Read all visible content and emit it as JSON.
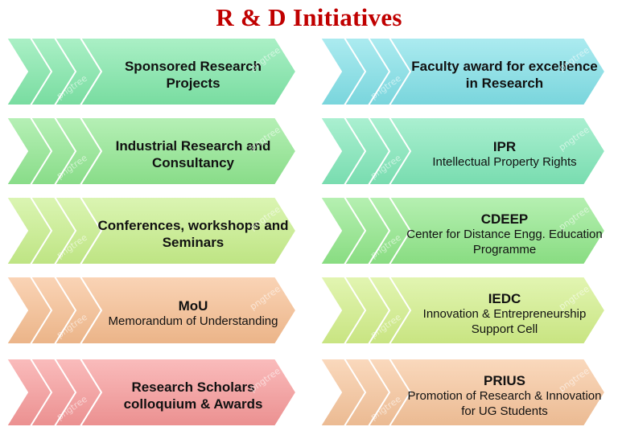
{
  "title": "R & D Initiatives",
  "watermark_text": "pngtree",
  "left_column": [
    {
      "heading": "Sponsored Research Projects",
      "subtext": "",
      "color": "#7ee8a8"
    },
    {
      "heading": "Industrial Research and Consultancy",
      "subtext": "",
      "color": "#8fe88f"
    },
    {
      "heading": "Conferences, workshops and Seminars",
      "subtext": "",
      "color": "#c8f08a"
    },
    {
      "heading": "MoU",
      "subtext": "Memorandum of Understanding",
      "color": "#f7bd8f"
    },
    {
      "heading": "Research Scholars colloquium & Awards",
      "subtext": "",
      "color": "#f79898"
    }
  ],
  "right_column": [
    {
      "heading": "Faculty award for excellence in Research",
      "subtext": "",
      "color": "#7fe0e8"
    },
    {
      "heading": "IPR",
      "subtext": "Intellectual Property Rights",
      "color": "#7ee8b8"
    },
    {
      "heading": "CDEEP",
      "subtext": "Center for Distance Engg. Education Programme",
      "color": "#8fe888"
    },
    {
      "heading": "IEDC",
      "subtext": "Innovation & Entrepreneurship Support Cell",
      "color": "#d2f088"
    },
    {
      "heading": "PRIUS",
      "subtext": "Promotion of Research & Innovation for UG Students",
      "color": "#f7c49a"
    }
  ]
}
